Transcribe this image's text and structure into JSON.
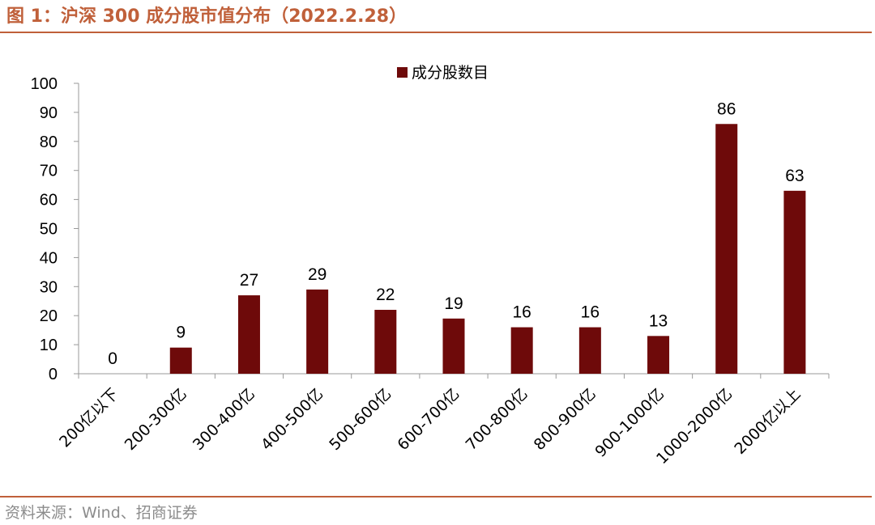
{
  "figure": {
    "title": "图 1：沪深 300 成分股市值分布（2022.2.28）",
    "source": "资料来源：Wind、招商证券"
  },
  "colors": {
    "accent": "#c0603a",
    "bar": "#6e0a0a",
    "axis": "#999999",
    "source_text": "#8c8c8c"
  },
  "chart_data": {
    "type": "bar",
    "title": "",
    "xlabel": "",
    "ylabel": "",
    "categories": [
      "200亿以下",
      "200-300亿",
      "300-400亿",
      "400-500亿",
      "500-600亿",
      "600-700亿",
      "700-800亿",
      "800-900亿",
      "900-1000亿",
      "1000-2000亿",
      "2000亿以上"
    ],
    "series": [
      {
        "name": "成分股数目",
        "values": [
          0,
          9,
          27,
          29,
          22,
          19,
          16,
          16,
          13,
          86,
          63
        ]
      }
    ],
    "ylim": [
      0,
      100
    ],
    "yticks": [
      0,
      10,
      20,
      30,
      40,
      50,
      60,
      70,
      80,
      90,
      100
    ],
    "data_labels": true,
    "grid": false,
    "legend": "top-center"
  }
}
